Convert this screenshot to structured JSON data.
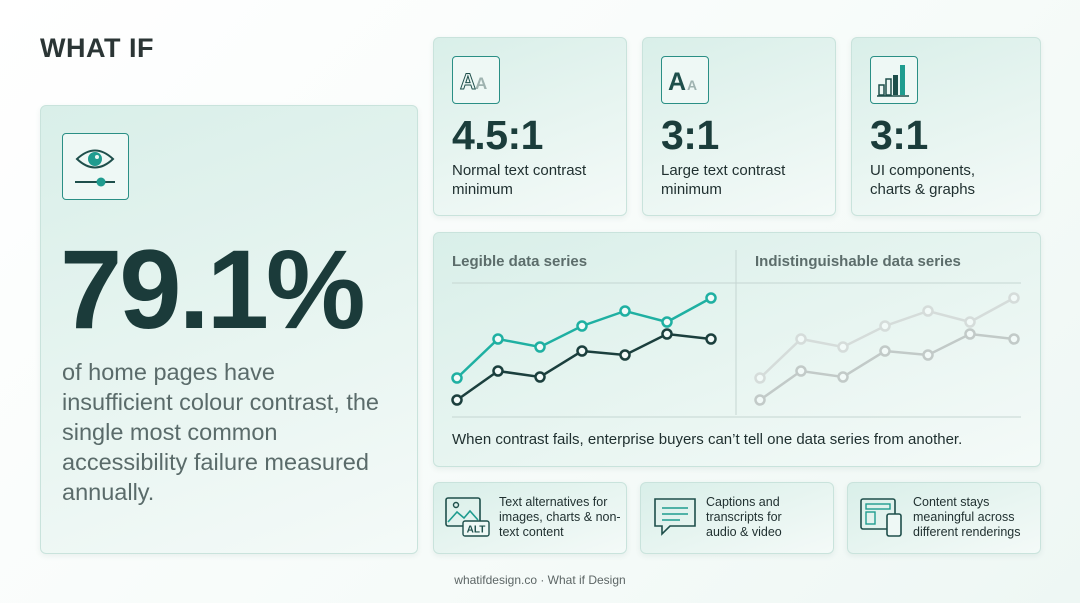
{
  "logo": "WHAT IF",
  "hero": {
    "stat": "79.1%",
    "description": "of home pages have insufficient colour contrast, the single most common accessibility failure measured annually."
  },
  "guidelines": [
    {
      "ratio": "4.5:1",
      "label": "Normal text contrast minimum"
    },
    {
      "ratio": "3:1",
      "label": "Large text contrast minimum"
    },
    {
      "ratio": "3:1",
      "label": "UI components, charts & graphs"
    }
  ],
  "comparison": {
    "legible_title": "Legible data series",
    "indistinct_title": "Indistinguishable data series",
    "caption": "When contrast fails, enterprise buyers can’t tell one data series from another."
  },
  "features": [
    {
      "text": "Text alternatives for images, charts & non-text content",
      "icon_label": "ALT"
    },
    {
      "text": "Captions and transcripts for audio & video"
    },
    {
      "text": "Content stays meaningful across different renderings"
    }
  ],
  "footer": "whatifdesign.co · What if Design"
}
